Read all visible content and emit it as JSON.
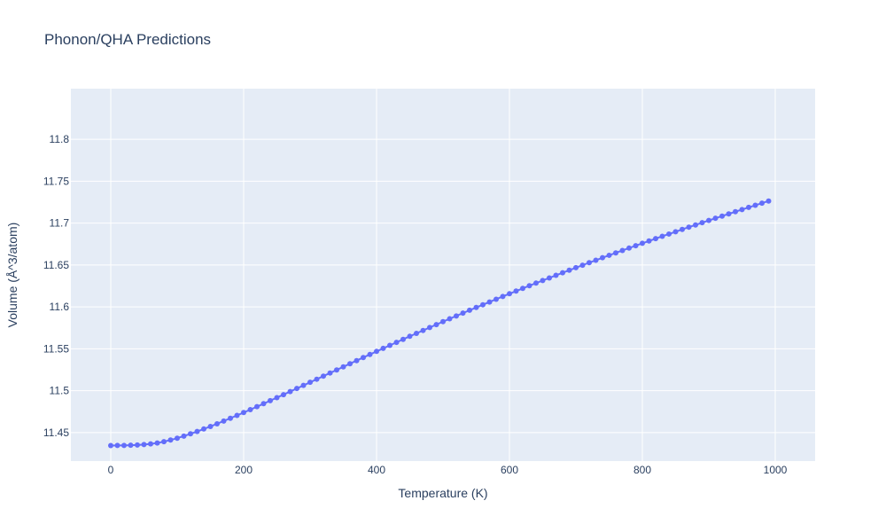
{
  "chart_data": {
    "type": "scatter",
    "mode": "lines+markers",
    "title": "Phonon/QHA Predictions",
    "xlabel": "Temperature (K)",
    "ylabel": "Volume (Å^3/atom)",
    "xlim": [
      -60,
      1060
    ],
    "ylim": [
      11.416,
      11.8605
    ],
    "xticks": [
      0,
      200,
      400,
      600,
      800,
      1000
    ],
    "yticks": [
      11.45,
      11.5,
      11.55,
      11.6,
      11.65,
      11.7,
      11.75,
      11.8
    ],
    "grid": true,
    "series": [
      {
        "x": [
          0,
          10,
          20,
          30,
          40,
          50,
          60,
          70,
          80,
          90,
          100,
          110,
          120,
          130,
          140,
          150,
          160,
          170,
          180,
          190,
          200,
          210,
          220,
          230,
          240,
          250,
          260,
          270,
          280,
          290,
          300,
          310,
          320,
          330,
          340,
          350,
          360,
          370,
          380,
          390,
          400,
          410,
          420,
          430,
          440,
          450,
          460,
          470,
          480,
          490,
          500,
          510,
          520,
          530,
          540,
          550,
          560,
          570,
          580,
          590,
          600,
          610,
          620,
          630,
          640,
          650,
          660,
          670,
          680,
          690,
          700,
          710,
          720,
          730,
          740,
          750,
          760,
          770,
          780,
          790,
          800,
          810,
          820,
          830,
          840,
          850,
          860,
          870,
          880,
          890,
          900,
          910,
          920,
          930,
          940,
          950,
          960,
          970,
          980,
          990
        ],
        "y": [
          11.4345,
          11.4346,
          11.4347,
          11.4349,
          11.4352,
          11.4357,
          11.4365,
          11.4376,
          11.4392,
          11.4411,
          11.4433,
          11.4458,
          11.4485,
          11.4513,
          11.4543,
          11.4573,
          11.4605,
          11.4638,
          11.4671,
          11.4705,
          11.4739,
          11.4774,
          11.4809,
          11.4845,
          11.4881,
          11.4917,
          11.4953,
          11.499,
          11.5026,
          11.5063,
          11.51,
          11.5137,
          11.5174,
          11.5211,
          11.5248,
          11.5285,
          11.5322,
          11.5359,
          11.5396,
          11.5432,
          11.5469,
          11.5505,
          11.5541,
          11.5577,
          11.5613,
          11.5649,
          11.5684,
          11.5719,
          11.5754,
          11.5789,
          11.5824,
          11.5858,
          11.5892,
          11.5926,
          11.596,
          11.5993,
          11.6026,
          11.6059,
          11.6092,
          11.6125,
          11.6157,
          11.6189,
          11.6221,
          11.6253,
          11.6284,
          11.6315,
          11.6346,
          11.6377,
          11.6408,
          11.6438,
          11.6468,
          11.6498,
          11.6528,
          11.6557,
          11.6587,
          11.6616,
          11.6645,
          11.6674,
          11.6702,
          11.6731,
          11.6759,
          11.6787,
          11.6815,
          11.6843,
          11.687,
          11.6897,
          11.6925,
          11.6952,
          11.6978,
          11.7005,
          11.7032,
          11.7058,
          11.7084,
          11.711,
          11.7136,
          11.7162,
          11.7188,
          11.7213,
          11.7239,
          11.7264
        ]
      }
    ]
  },
  "colors": {
    "plot_bg": "#e5ecf6",
    "grid": "#ffffff",
    "line": "#636efa",
    "text": "#2a3f5f"
  }
}
